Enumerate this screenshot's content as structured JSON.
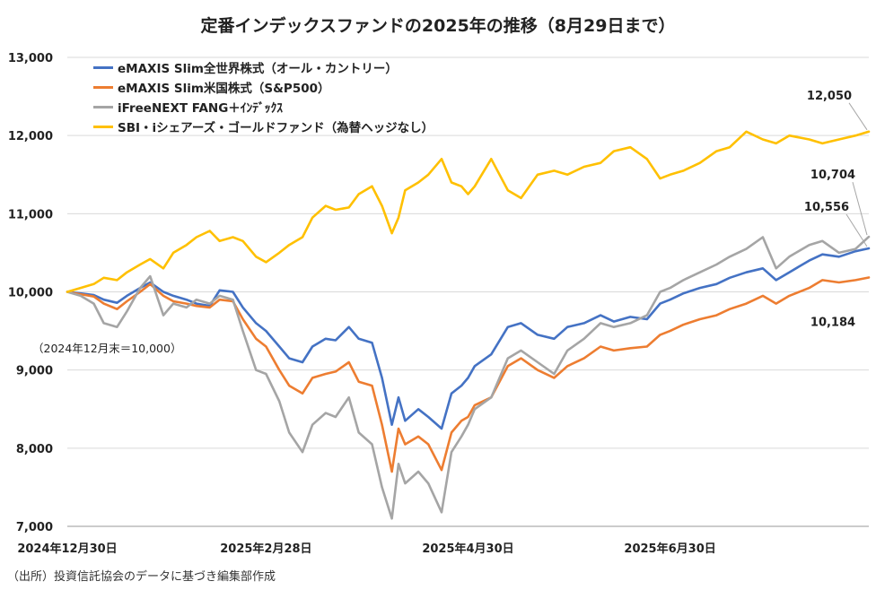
{
  "title": "定番インデックスファンドの2025年の推移（8月29日まで）",
  "baseline_note": "（2024年12月末＝10,000）",
  "source_note": "（出所）投資信託協会のデータに基づき編集部作成",
  "chart_data": {
    "type": "line",
    "title": "定番インデックスファンドの2025年の推移（8月29日まで）",
    "ylim": [
      7000,
      13000
    ],
    "yticks": [
      7000,
      8000,
      9000,
      10000,
      11000,
      12000,
      13000
    ],
    "ytick_labels": [
      "7,000",
      "8,000",
      "9,000",
      "10,000",
      "11,000",
      "12,000",
      "13,000"
    ],
    "xlim": [
      "2024-12-30",
      "2025-08-29"
    ],
    "xticks": [
      {
        "date": "2024-12-30",
        "label": "2024年12月30日"
      },
      {
        "date": "2025-02-28",
        "label": "2025年2月28日"
      },
      {
        "date": "2025-04-30",
        "label": "2025年4月30日"
      },
      {
        "date": "2025-06-30",
        "label": "2025年6月30日"
      }
    ],
    "grid": "horizontal",
    "legend_position": "top-left",
    "series": [
      {
        "name": "eMAXIS Slim全世界株式（オール・カントリー）",
        "color": "#4472C4",
        "points": [
          [
            "2024-12-30",
            10000
          ],
          [
            "2025-01-03",
            9980
          ],
          [
            "2025-01-07",
            9960
          ],
          [
            "2025-01-10",
            9900
          ],
          [
            "2025-01-14",
            9860
          ],
          [
            "2025-01-17",
            9950
          ],
          [
            "2025-01-21",
            10050
          ],
          [
            "2025-01-24",
            10120
          ],
          [
            "2025-01-28",
            10000
          ],
          [
            "2025-01-31",
            9950
          ],
          [
            "2025-02-04",
            9900
          ],
          [
            "2025-02-07",
            9850
          ],
          [
            "2025-02-11",
            9820
          ],
          [
            "2025-02-14",
            10020
          ],
          [
            "2025-02-18",
            10000
          ],
          [
            "2025-02-21",
            9800
          ],
          [
            "2025-02-25",
            9600
          ],
          [
            "2025-02-28",
            9500
          ],
          [
            "2025-03-04",
            9300
          ],
          [
            "2025-03-07",
            9150
          ],
          [
            "2025-03-11",
            9100
          ],
          [
            "2025-03-14",
            9300
          ],
          [
            "2025-03-18",
            9400
          ],
          [
            "2025-03-21",
            9380
          ],
          [
            "2025-03-25",
            9550
          ],
          [
            "2025-03-28",
            9400
          ],
          [
            "2025-04-01",
            9350
          ],
          [
            "2025-04-04",
            8900
          ],
          [
            "2025-04-07",
            8300
          ],
          [
            "2025-04-09",
            8650
          ],
          [
            "2025-04-11",
            8350
          ],
          [
            "2025-04-15",
            8500
          ],
          [
            "2025-04-18",
            8400
          ],
          [
            "2025-04-22",
            8250
          ],
          [
            "2025-04-25",
            8700
          ],
          [
            "2025-04-28",
            8800
          ],
          [
            "2025-04-30",
            8900
          ],
          [
            "2025-05-02",
            9050
          ],
          [
            "2025-05-07",
            9200
          ],
          [
            "2025-05-12",
            9550
          ],
          [
            "2025-05-16",
            9600
          ],
          [
            "2025-05-21",
            9450
          ],
          [
            "2025-05-26",
            9400
          ],
          [
            "2025-05-30",
            9550
          ],
          [
            "2025-06-04",
            9600
          ],
          [
            "2025-06-09",
            9700
          ],
          [
            "2025-06-13",
            9620
          ],
          [
            "2025-06-18",
            9680
          ],
          [
            "2025-06-23",
            9650
          ],
          [
            "2025-06-27",
            9850
          ],
          [
            "2025-06-30",
            9900
          ],
          [
            "2025-07-04",
            9980
          ],
          [
            "2025-07-09",
            10050
          ],
          [
            "2025-07-14",
            10100
          ],
          [
            "2025-07-18",
            10180
          ],
          [
            "2025-07-23",
            10250
          ],
          [
            "2025-07-28",
            10300
          ],
          [
            "2025-08-01",
            10150
          ],
          [
            "2025-08-05",
            10250
          ],
          [
            "2025-08-11",
            10400
          ],
          [
            "2025-08-15",
            10480
          ],
          [
            "2025-08-20",
            10450
          ],
          [
            "2025-08-25",
            10520
          ],
          [
            "2025-08-29",
            10556
          ]
        ]
      },
      {
        "name": "eMAXIS Slim米国株式（S&P500）",
        "color": "#ED7D31",
        "points": [
          [
            "2024-12-30",
            10000
          ],
          [
            "2025-01-03",
            9970
          ],
          [
            "2025-01-07",
            9940
          ],
          [
            "2025-01-10",
            9850
          ],
          [
            "2025-01-14",
            9780
          ],
          [
            "2025-01-17",
            9880
          ],
          [
            "2025-01-21",
            10000
          ],
          [
            "2025-01-24",
            10100
          ],
          [
            "2025-01-28",
            9950
          ],
          [
            "2025-01-31",
            9880
          ],
          [
            "2025-02-04",
            9850
          ],
          [
            "2025-02-07",
            9820
          ],
          [
            "2025-02-11",
            9800
          ],
          [
            "2025-02-14",
            9900
          ],
          [
            "2025-02-18",
            9880
          ],
          [
            "2025-02-21",
            9650
          ],
          [
            "2025-02-25",
            9400
          ],
          [
            "2025-02-28",
            9300
          ],
          [
            "2025-03-04",
            9000
          ],
          [
            "2025-03-07",
            8800
          ],
          [
            "2025-03-11",
            8700
          ],
          [
            "2025-03-14",
            8900
          ],
          [
            "2025-03-18",
            8950
          ],
          [
            "2025-03-21",
            8980
          ],
          [
            "2025-03-25",
            9100
          ],
          [
            "2025-03-28",
            8850
          ],
          [
            "2025-04-01",
            8800
          ],
          [
            "2025-04-04",
            8300
          ],
          [
            "2025-04-07",
            7700
          ],
          [
            "2025-04-09",
            8250
          ],
          [
            "2025-04-11",
            8050
          ],
          [
            "2025-04-15",
            8150
          ],
          [
            "2025-04-18",
            8050
          ],
          [
            "2025-04-22",
            7720
          ],
          [
            "2025-04-25",
            8200
          ],
          [
            "2025-04-28",
            8350
          ],
          [
            "2025-04-30",
            8400
          ],
          [
            "2025-05-02",
            8550
          ],
          [
            "2025-05-07",
            8650
          ],
          [
            "2025-05-12",
            9050
          ],
          [
            "2025-05-16",
            9150
          ],
          [
            "2025-05-21",
            9000
          ],
          [
            "2025-05-26",
            8900
          ],
          [
            "2025-05-30",
            9050
          ],
          [
            "2025-06-04",
            9150
          ],
          [
            "2025-06-09",
            9300
          ],
          [
            "2025-06-13",
            9250
          ],
          [
            "2025-06-18",
            9280
          ],
          [
            "2025-06-23",
            9300
          ],
          [
            "2025-06-27",
            9450
          ],
          [
            "2025-06-30",
            9500
          ],
          [
            "2025-07-04",
            9580
          ],
          [
            "2025-07-09",
            9650
          ],
          [
            "2025-07-14",
            9700
          ],
          [
            "2025-07-18",
            9780
          ],
          [
            "2025-07-23",
            9850
          ],
          [
            "2025-07-28",
            9950
          ],
          [
            "2025-08-01",
            9850
          ],
          [
            "2025-08-05",
            9950
          ],
          [
            "2025-08-11",
            10050
          ],
          [
            "2025-08-15",
            10150
          ],
          [
            "2025-08-20",
            10120
          ],
          [
            "2025-08-25",
            10150
          ],
          [
            "2025-08-29",
            10184
          ]
        ]
      },
      {
        "name": "iFreeNEXT FANG＋ｲﾝﾃﾞｯｸｽ",
        "color": "#A5A5A5",
        "points": [
          [
            "2024-12-30",
            10000
          ],
          [
            "2025-01-03",
            9950
          ],
          [
            "2025-01-07",
            9850
          ],
          [
            "2025-01-10",
            9600
          ],
          [
            "2025-01-14",
            9550
          ],
          [
            "2025-01-17",
            9750
          ],
          [
            "2025-01-21",
            10050
          ],
          [
            "2025-01-24",
            10200
          ],
          [
            "2025-01-28",
            9700
          ],
          [
            "2025-01-31",
            9850
          ],
          [
            "2025-02-04",
            9800
          ],
          [
            "2025-02-07",
            9900
          ],
          [
            "2025-02-11",
            9850
          ],
          [
            "2025-02-14",
            9950
          ],
          [
            "2025-02-18",
            9900
          ],
          [
            "2025-02-21",
            9500
          ],
          [
            "2025-02-25",
            9000
          ],
          [
            "2025-02-28",
            8950
          ],
          [
            "2025-03-04",
            8600
          ],
          [
            "2025-03-07",
            8200
          ],
          [
            "2025-03-11",
            7950
          ],
          [
            "2025-03-14",
            8300
          ],
          [
            "2025-03-18",
            8450
          ],
          [
            "2025-03-21",
            8400
          ],
          [
            "2025-03-25",
            8650
          ],
          [
            "2025-03-28",
            8200
          ],
          [
            "2025-04-01",
            8050
          ],
          [
            "2025-04-04",
            7500
          ],
          [
            "2025-04-07",
            7100
          ],
          [
            "2025-04-09",
            7800
          ],
          [
            "2025-04-11",
            7550
          ],
          [
            "2025-04-15",
            7700
          ],
          [
            "2025-04-18",
            7550
          ],
          [
            "2025-04-22",
            7180
          ],
          [
            "2025-04-25",
            7950
          ],
          [
            "2025-04-28",
            8150
          ],
          [
            "2025-04-30",
            8300
          ],
          [
            "2025-05-02",
            8500
          ],
          [
            "2025-05-07",
            8650
          ],
          [
            "2025-05-12",
            9150
          ],
          [
            "2025-05-16",
            9250
          ],
          [
            "2025-05-21",
            9100
          ],
          [
            "2025-05-26",
            8950
          ],
          [
            "2025-05-30",
            9250
          ],
          [
            "2025-06-04",
            9400
          ],
          [
            "2025-06-09",
            9600
          ],
          [
            "2025-06-13",
            9550
          ],
          [
            "2025-06-18",
            9600
          ],
          [
            "2025-06-23",
            9700
          ],
          [
            "2025-06-27",
            10000
          ],
          [
            "2025-06-30",
            10050
          ],
          [
            "2025-07-04",
            10150
          ],
          [
            "2025-07-09",
            10250
          ],
          [
            "2025-07-14",
            10350
          ],
          [
            "2025-07-18",
            10450
          ],
          [
            "2025-07-23",
            10550
          ],
          [
            "2025-07-28",
            10700
          ],
          [
            "2025-08-01",
            10300
          ],
          [
            "2025-08-05",
            10450
          ],
          [
            "2025-08-11",
            10600
          ],
          [
            "2025-08-15",
            10650
          ],
          [
            "2025-08-20",
            10500
          ],
          [
            "2025-08-25",
            10550
          ],
          [
            "2025-08-29",
            10704
          ]
        ]
      },
      {
        "name": "SBI・iシェアーズ・ゴールドファンド（為替ヘッジなし）",
        "color": "#FFC000",
        "points": [
          [
            "2024-12-30",
            10000
          ],
          [
            "2025-01-03",
            10050
          ],
          [
            "2025-01-07",
            10100
          ],
          [
            "2025-01-10",
            10180
          ],
          [
            "2025-01-14",
            10150
          ],
          [
            "2025-01-17",
            10250
          ],
          [
            "2025-01-21",
            10350
          ],
          [
            "2025-01-24",
            10420
          ],
          [
            "2025-01-28",
            10300
          ],
          [
            "2025-01-31",
            10500
          ],
          [
            "2025-02-04",
            10600
          ],
          [
            "2025-02-07",
            10700
          ],
          [
            "2025-02-11",
            10780
          ],
          [
            "2025-02-14",
            10650
          ],
          [
            "2025-02-18",
            10700
          ],
          [
            "2025-02-21",
            10650
          ],
          [
            "2025-02-25",
            10450
          ],
          [
            "2025-02-28",
            10380
          ],
          [
            "2025-03-04",
            10500
          ],
          [
            "2025-03-07",
            10600
          ],
          [
            "2025-03-11",
            10700
          ],
          [
            "2025-03-14",
            10950
          ],
          [
            "2025-03-18",
            11100
          ],
          [
            "2025-03-21",
            11050
          ],
          [
            "2025-03-25",
            11080
          ],
          [
            "2025-03-28",
            11250
          ],
          [
            "2025-04-01",
            11350
          ],
          [
            "2025-04-04",
            11100
          ],
          [
            "2025-04-07",
            10750
          ],
          [
            "2025-04-09",
            10950
          ],
          [
            "2025-04-11",
            11300
          ],
          [
            "2025-04-15",
            11400
          ],
          [
            "2025-04-18",
            11500
          ],
          [
            "2025-04-22",
            11700
          ],
          [
            "2025-04-25",
            11400
          ],
          [
            "2025-04-28",
            11350
          ],
          [
            "2025-04-30",
            11250
          ],
          [
            "2025-05-02",
            11350
          ],
          [
            "2025-05-07",
            11700
          ],
          [
            "2025-05-12",
            11300
          ],
          [
            "2025-05-16",
            11200
          ],
          [
            "2025-05-21",
            11500
          ],
          [
            "2025-05-26",
            11550
          ],
          [
            "2025-05-30",
            11500
          ],
          [
            "2025-06-04",
            11600
          ],
          [
            "2025-06-09",
            11650
          ],
          [
            "2025-06-13",
            11800
          ],
          [
            "2025-06-18",
            11850
          ],
          [
            "2025-06-23",
            11700
          ],
          [
            "2025-06-27",
            11450
          ],
          [
            "2025-06-30",
            11500
          ],
          [
            "2025-07-04",
            11550
          ],
          [
            "2025-07-09",
            11650
          ],
          [
            "2025-07-14",
            11800
          ],
          [
            "2025-07-18",
            11850
          ],
          [
            "2025-07-23",
            12050
          ],
          [
            "2025-07-28",
            11950
          ],
          [
            "2025-08-01",
            11900
          ],
          [
            "2025-08-05",
            12000
          ],
          [
            "2025-08-11",
            11950
          ],
          [
            "2025-08-15",
            11900
          ],
          [
            "2025-08-20",
            11950
          ],
          [
            "2025-08-25",
            12000
          ],
          [
            "2025-08-29",
            12050
          ]
        ]
      }
    ],
    "data_labels": [
      {
        "series": 3,
        "text": "12,050"
      },
      {
        "series": 2,
        "text": "10,704"
      },
      {
        "series": 0,
        "text": "10,556"
      },
      {
        "series": 1,
        "text": "10,184"
      }
    ]
  }
}
